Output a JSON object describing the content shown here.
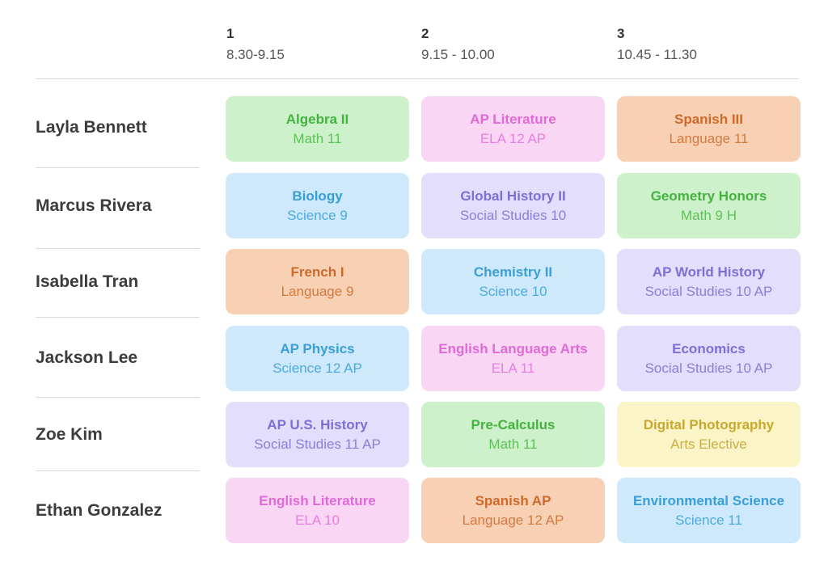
{
  "periods": [
    {
      "number": "1",
      "time": "8.30-9.15"
    },
    {
      "number": "2",
      "time": "9.15 - 10.00"
    },
    {
      "number": "3",
      "time": "10.45 - 11.30"
    }
  ],
  "colors": {
    "green": "#cdf2cb",
    "pink": "#f8d6f4",
    "orange": "#f8d1b5",
    "blue": "#cde9fb",
    "purple": "#e2defb",
    "yellow": "#fbf4c7",
    "divider": "#d9d9d9"
  },
  "students": [
    {
      "name": "Layla Bennett",
      "classes": [
        {
          "name": "Algebra II",
          "sub": "Math 11",
          "color": "green"
        },
        {
          "name": "AP Literature",
          "sub": "ELA 12 AP",
          "color": "pink"
        },
        {
          "name": "Spanish III",
          "sub": "Language 11",
          "color": "orange"
        }
      ]
    },
    {
      "name": "Marcus Rivera",
      "classes": [
        {
          "name": "Biology",
          "sub": "Science 9",
          "color": "blue"
        },
        {
          "name": "Global History II",
          "sub": "Social Studies 10",
          "color": "purple"
        },
        {
          "name": "Geometry Honors",
          "sub": "Math 9 H",
          "color": "green"
        }
      ]
    },
    {
      "name": "Isabella Tran",
      "classes": [
        {
          "name": "French I",
          "sub": "Language 9",
          "color": "orange"
        },
        {
          "name": "Chemistry II",
          "sub": "Science 10",
          "color": "blue"
        },
        {
          "name": "AP World History",
          "sub": "Social Studies 10 AP",
          "color": "purple"
        }
      ]
    },
    {
      "name": "Jackson Lee",
      "classes": [
        {
          "name": "AP Physics",
          "sub": "Science 12 AP",
          "color": "blue"
        },
        {
          "name": "English Language Arts",
          "sub": "ELA 11",
          "color": "pink"
        },
        {
          "name": "Economics",
          "sub": "Social Studies 10 AP",
          "color": "purple"
        }
      ]
    },
    {
      "name": "Zoe Kim",
      "classes": [
        {
          "name": "AP U.S. History",
          "sub": "Social Studies 11 AP",
          "color": "purple"
        },
        {
          "name": "Pre-Calculus",
          "sub": "Math 11",
          "color": "green"
        },
        {
          "name": "Digital Photography",
          "sub": "Arts Elective",
          "color": "yellow"
        }
      ]
    },
    {
      "name": "Ethan Gonzalez",
      "classes": [
        {
          "name": "English Literature",
          "sub": "ELA 10",
          "color": "pink"
        },
        {
          "name": "Spanish AP",
          "sub": "Language 12 AP",
          "color": "orange"
        },
        {
          "name": "Environmental Science",
          "sub": "Science 11",
          "color": "blue"
        }
      ]
    }
  ]
}
